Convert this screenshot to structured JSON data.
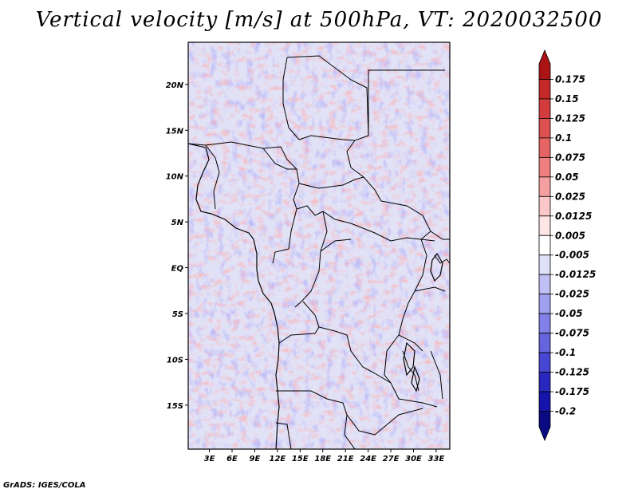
{
  "title": "Vertical velocity [m/s] at 500hPa, VT: 2020032500",
  "footer": "GrADS: IGES/COLA",
  "map": {
    "lat_ticks": [
      {
        "label": "20N",
        "lat": 20
      },
      {
        "label": "15N",
        "lat": 15
      },
      {
        "label": "10N",
        "lat": 10
      },
      {
        "label": "5N",
        "lat": 5
      },
      {
        "label": "EQ",
        "lat": 0
      },
      {
        "label": "5S",
        "lat": -5
      },
      {
        "label": "10S",
        "lat": -10
      },
      {
        "label": "15S",
        "lat": -15
      }
    ],
    "lon_ticks": [
      {
        "label": "3E",
        "lon": 3
      },
      {
        "label": "6E",
        "lon": 6
      },
      {
        "label": "9E",
        "lon": 9
      },
      {
        "label": "12E",
        "lon": 12
      },
      {
        "label": "15E",
        "lon": 15
      },
      {
        "label": "18E",
        "lon": 18
      },
      {
        "label": "21E",
        "lon": 21
      },
      {
        "label": "24E",
        "lon": 24
      },
      {
        "label": "27E",
        "lon": 27
      },
      {
        "label": "30E",
        "lon": 30
      },
      {
        "label": "33E",
        "lon": 33
      }
    ],
    "lon_range": [
      0.2,
      34.8
    ],
    "lat_range": [
      -19.8,
      24.6
    ]
  },
  "colorbar": {
    "levels": [
      "0.175",
      "0.15",
      "0.125",
      "0.1",
      "0.075",
      "0.05",
      "0.025",
      "0.0125",
      "0.005",
      "-0.005",
      "-0.0125",
      "-0.025",
      "-0.05",
      "-0.075",
      "-0.1",
      "-0.125",
      "-0.175",
      "-0.2"
    ],
    "colors": [
      "#aa1414",
      "#c42828",
      "#d23c3c",
      "#dc5050",
      "#e66464",
      "#f08080",
      "#f5a0a0",
      "#fac8c8",
      "#fde6e6",
      "#ffffff",
      "#e0e0fa",
      "#c0c0f5",
      "#a0a0f0",
      "#8080e8",
      "#6464dc",
      "#4646d2",
      "#2828be",
      "#1414aa",
      "#0a0a82"
    ]
  }
}
